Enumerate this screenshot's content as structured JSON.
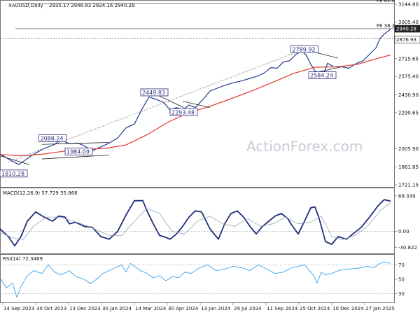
{
  "chart_data": [
    {
      "type": "line",
      "title": "XAUUSD,Daily",
      "ohlc_text": "2935.17 2946.83 2924.16 2940.28",
      "ylim": [
        1721.15,
        3144.8
      ],
      "yticks": [
        {
          "label": "3144.80",
          "value": 3144.8
        },
        {
          "label": "3005.40",
          "value": 3005.4
        },
        {
          "label": "2715.65",
          "value": 2715.65
        },
        {
          "label": "2575.40",
          "value": 2575.4
        },
        {
          "label": "2430.90",
          "value": 2430.9
        },
        {
          "label": "2290.65",
          "value": 2290.65
        },
        {
          "label": "2005.90",
          "value": 2005.9
        },
        {
          "label": "1861.65",
          "value": 1861.65
        },
        {
          "label": "1721.15",
          "value": 1721.15
        }
      ],
      "price_tags": [
        {
          "label": "2940.28",
          "value": 2940.28
        },
        {
          "label": "2876.93",
          "value": 2876.93
        }
      ],
      "fib_levels": [
        {
          "label": "FE 61.8",
          "value": 3150.0
        },
        {
          "label": "FE 38.2",
          "value": 2952.0
        }
      ],
      "support_level": 2876.93,
      "annotations": [
        {
          "label": "1810.28",
          "x": 0,
          "y": 1810.28
        },
        {
          "label": "2088.24",
          "x": 50,
          "y": 2088.24
        },
        {
          "label": "1984.09",
          "x": 75,
          "y": 1984.09
        },
        {
          "label": "2449.83",
          "x": 147,
          "y": 2449.83
        },
        {
          "label": "2293.48",
          "x": 175,
          "y": 2293.48
        },
        {
          "label": "2789.92",
          "x": 290,
          "y": 2789.92
        },
        {
          "label": "2584.24",
          "x": 307,
          "y": 2584.24
        }
      ],
      "series": [
        {
          "name": "",
          "color": "#1f3f8f",
          "x": [
            0,
            8,
            18,
            28,
            40,
            52,
            58,
            66,
            74,
            80,
            88,
            96,
            104,
            112,
            120,
            128,
            136,
            142,
            150,
            156,
            162,
            168,
            174,
            180,
            186,
            194,
            200,
            206,
            214,
            222,
            230,
            238,
            246,
            252,
            258,
            264,
            270,
            276,
            282,
            288,
            292,
            296,
            300,
            304,
            308,
            312,
            318,
            324,
            332,
            340,
            346,
            352,
            358,
            362,
            366,
            370,
            372
          ],
          "y": [
            1965,
            1925,
            1880,
            1940,
            2000,
            2040,
            2075,
            2045,
            2050,
            2030,
            1990,
            2020,
            2050,
            2090,
            2170,
            2200,
            2330,
            2415,
            2390,
            2370,
            2310,
            2330,
            2310,
            2350,
            2330,
            2400,
            2460,
            2480,
            2505,
            2525,
            2540,
            2560,
            2580,
            2605,
            2645,
            2640,
            2690,
            2700,
            2750,
            2775,
            2738,
            2670,
            2618,
            2605,
            2590,
            2680,
            2650,
            2655,
            2640,
            2680,
            2700,
            2750,
            2800,
            2875,
            2910,
            2935,
            2950
          ]
        },
        {
          "name": "",
          "color": "#e23a2e",
          "x": [
            0,
            20,
            40,
            60,
            80,
            100,
            120,
            140,
            160,
            180,
            200,
            220,
            240,
            260,
            280,
            300,
            320,
            340,
            360,
            372
          ],
          "y": [
            1960,
            1950,
            1962,
            1985,
            2000,
            2008,
            2035,
            2115,
            2215,
            2290,
            2340,
            2400,
            2462,
            2530,
            2600,
            2648,
            2650,
            2670,
            2718,
            2745
          ]
        }
      ]
    },
    {
      "type": "line",
      "title": "MACD(12,26,9) 57.729 55.868",
      "ylim": [
        -40,
        80
      ],
      "yticks": [
        {
          "label": "69.339",
          "value": 69.339
        },
        {
          "label": "0.00",
          "value": 0
        },
        {
          "label": "-30.822",
          "value": -30.822
        }
      ],
      "series": [
        {
          "name": "",
          "color": "#1f2d7a",
          "x": [
            0,
            8,
            14,
            20,
            26,
            34,
            42,
            50,
            56,
            62,
            66,
            72,
            80,
            88,
            96,
            104,
            112,
            120,
            128,
            136,
            140,
            146,
            152,
            156,
            162,
            168,
            174,
            180,
            186,
            192,
            200,
            208,
            214,
            220,
            226,
            232,
            238,
            244,
            250,
            256,
            262,
            268,
            274,
            278,
            284,
            290,
            296,
            300,
            304,
            310,
            316,
            322,
            330,
            336,
            344,
            352,
            360,
            366,
            372
          ],
          "y": [
            5,
            -10,
            -28,
            -10,
            20,
            38,
            28,
            20,
            30,
            28,
            15,
            18,
            10,
            8,
            -10,
            -15,
            0,
            32,
            60,
            60,
            40,
            15,
            -8,
            -10,
            -15,
            -5,
            10,
            28,
            40,
            38,
            5,
            -15,
            15,
            35,
            40,
            28,
            10,
            -5,
            10,
            20,
            30,
            35,
            25,
            12,
            -5,
            20,
            46,
            48,
            25,
            -20,
            -25,
            -10,
            -15,
            -5,
            8,
            28,
            50,
            62,
            59
          ]
        },
        {
          "name": "",
          "color": "#9aa3b0",
          "x": [
            0,
            12,
            22,
            32,
            44,
            54,
            64,
            76,
            90,
            104,
            116,
            128,
            140,
            152,
            164,
            176,
            188,
            200,
            212,
            224,
            236,
            248,
            260,
            272,
            284,
            296,
            306,
            316,
            326,
            338,
            350,
            362,
            372
          ],
          "y": [
            -2,
            -12,
            -16,
            10,
            28,
            28,
            24,
            16,
            5,
            -8,
            -8,
            20,
            45,
            35,
            0,
            -5,
            20,
            30,
            15,
            10,
            25,
            10,
            15,
            28,
            15,
            18,
            30,
            -10,
            -16,
            -8,
            10,
            40,
            56
          ]
        }
      ]
    },
    {
      "type": "line",
      "title": "RSI(14) 72.3469",
      "ylim": [
        20,
        80
      ],
      "yticks": [
        {
          "label": "70",
          "value": 70
        },
        {
          "label": "50",
          "value": 50
        },
        {
          "label": "30",
          "value": 30
        }
      ],
      "series": [
        {
          "name": "",
          "color": "#3aa2e8",
          "x": [
            0,
            6,
            12,
            16,
            20,
            26,
            32,
            40,
            46,
            52,
            58,
            66,
            72,
            80,
            86,
            92,
            98,
            104,
            110,
            116,
            120,
            124,
            128,
            134,
            140,
            146,
            152,
            158,
            164,
            170,
            176,
            182,
            190,
            198,
            206,
            214,
            222,
            230,
            238,
            246,
            254,
            262,
            270,
            278,
            284,
            290,
            296,
            300,
            302,
            306,
            310,
            316,
            322,
            330,
            340,
            350,
            356,
            362,
            366,
            372
          ],
          "y": [
            52,
            38,
            45,
            25,
            40,
            55,
            62,
            58,
            70,
            60,
            56,
            62,
            54,
            50,
            44,
            50,
            58,
            62,
            66,
            70,
            60,
            72,
            68,
            62,
            58,
            52,
            55,
            48,
            54,
            52,
            60,
            58,
            66,
            70,
            62,
            64,
            68,
            66,
            62,
            70,
            64,
            58,
            60,
            66,
            68,
            70,
            60,
            52,
            45,
            60,
            56,
            58,
            62,
            64,
            65,
            68,
            66,
            72,
            74,
            72
          ]
        }
      ]
    }
  ],
  "x_axis_labels": [
    "14 Sep 2023",
    "30 Oct 2023",
    "13 Dec 2023",
    "30 Jan 2024",
    "14 Mar 2024",
    "30 Apr 2024",
    "13 Jun 2024",
    "29 Jul 2024",
    "11 Sep 2024",
    "25 Oct 2024",
    "10 Dec 2024",
    "27 Jan 2025"
  ],
  "watermark": "ActionForex.com",
  "colors": {
    "price": "#1f3f8f",
    "ma": "#e23a2e",
    "macd": "#1f2d7a",
    "signal": "#9aa3b0",
    "rsi": "#3aa2e8",
    "frame": "#555555"
  }
}
